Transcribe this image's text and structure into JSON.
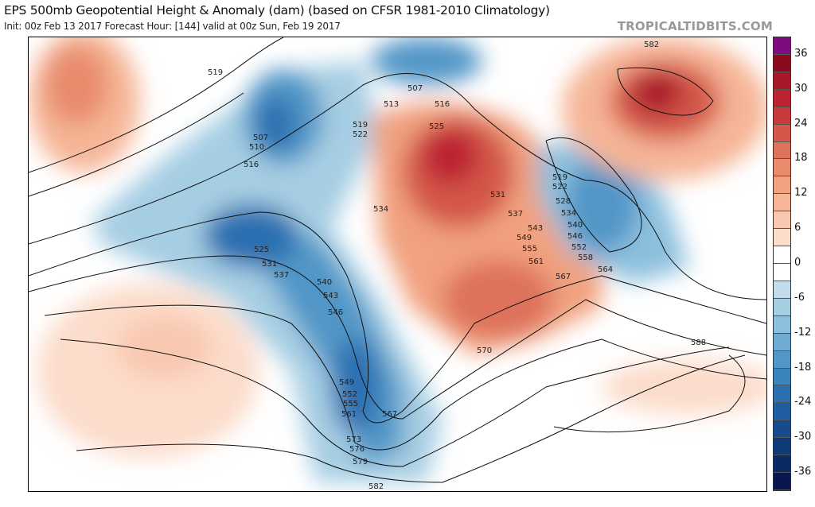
{
  "header": {
    "title": "EPS 500mb Geopotential Height & Anomaly (dam) (based on CFSR 1981-2010 Climatology)",
    "subtitle": "Init: 00z Feb 13 2017   Forecast Hour: [144]   valid at 00z Sun, Feb 19 2017",
    "brand": "TROPICALTIDBITS.COM"
  },
  "colorbar": {
    "ticks": [
      "36",
      "30",
      "24",
      "18",
      "12",
      "6",
      "0",
      "-6",
      "-12",
      "-18",
      "-24",
      "-30",
      "-36"
    ],
    "colors": [
      "#7b0d7e",
      "#8a0a1e",
      "#a8172a",
      "#bc2331",
      "#c93b3b",
      "#d3574a",
      "#de725b",
      "#e88b6d",
      "#f1a17f",
      "#f6b596",
      "#f9c8b0",
      "#fcdccb",
      "#ffffff",
      "#ffffff",
      "#c3dcec",
      "#a6cee3",
      "#8cbfdd",
      "#6fabd2",
      "#5196c7",
      "#3a84bd",
      "#2a6fb0",
      "#1f5da3",
      "#174b8e",
      "#0f3a78",
      "#0a2a64",
      "#08174f"
    ]
  },
  "contour_labels": [
    "519",
    "507",
    "510",
    "516",
    "513",
    "507",
    "516",
    "519",
    "522",
    "525",
    "534",
    "531",
    "537",
    "543",
    "549",
    "555",
    "561",
    "567",
    "519",
    "522",
    "528",
    "534",
    "540",
    "546",
    "552",
    "558",
    "564",
    "525",
    "531",
    "537",
    "540",
    "543",
    "546",
    "549",
    "552",
    "555",
    "561",
    "567",
    "573",
    "576",
    "579",
    "582",
    "570",
    "588",
    "582"
  ]
}
